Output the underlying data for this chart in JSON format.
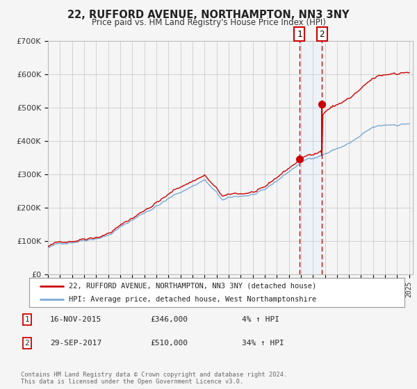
{
  "title": "22, RUFFORD AVENUE, NORTHAMPTON, NN3 3NY",
  "subtitle": "Price paid vs. HM Land Registry's House Price Index (HPI)",
  "legend_line1": "22, RUFFORD AVENUE, NORTHAMPTON, NN3 3NY (detached house)",
  "legend_line2": "HPI: Average price, detached house, West Northamptonshire",
  "annotation1_date": "16-NOV-2015",
  "annotation1_price": "£346,000",
  "annotation1_pct": "4% ↑ HPI",
  "annotation2_date": "29-SEP-2017",
  "annotation2_price": "£510,000",
  "annotation2_pct": "34% ↑ HPI",
  "footer": "Contains HM Land Registry data © Crown copyright and database right 2024.\nThis data is licensed under the Open Government Licence v3.0.",
  "red_color": "#cc0000",
  "blue_color": "#7aa8d4",
  "background_color": "#f5f5f5",
  "grid_color": "#cccccc",
  "shade_color": "#ddeeff",
  "ylim": [
    0,
    700000
  ],
  "yticks": [
    0,
    100000,
    200000,
    300000,
    400000,
    500000,
    600000,
    700000
  ],
  "year_start": 1995,
  "year_end": 2025,
  "purchase1_year": 2015.88,
  "purchase1_value": 346000,
  "purchase2_year": 2017.75,
  "purchase2_value": 510000
}
